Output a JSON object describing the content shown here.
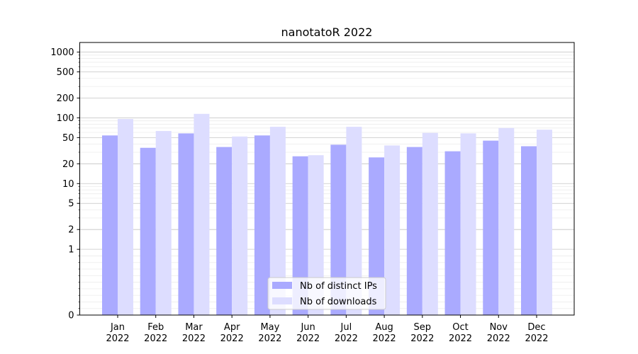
{
  "chart_data": {
    "type": "bar",
    "title": "nanotatoR 2022",
    "xlabel": "",
    "ylabel": "",
    "yscale": "symlog",
    "ylim": [
      0,
      1400
    ],
    "yticks": [
      0,
      1,
      2,
      5,
      10,
      20,
      50,
      100,
      200,
      500,
      1000
    ],
    "grid": true,
    "legend_position": "lower-center",
    "categories": [
      "Jan\n2022",
      "Feb\n2022",
      "Mar\n2022",
      "Apr\n2022",
      "May\n2022",
      "Jun\n2022",
      "Jul\n2022",
      "Aug\n2022",
      "Sep\n2022",
      "Oct\n2022",
      "Nov\n2022",
      "Dec\n2022"
    ],
    "series": [
      {
        "name": "Nb of distinct IPs",
        "color": "#aaaaff",
        "values": [
          54,
          35,
          58,
          36,
          54,
          26,
          39,
          25,
          36,
          31,
          45,
          37
        ]
      },
      {
        "name": "Nb of downloads",
        "color": "#ddddff",
        "values": [
          96,
          63,
          115,
          52,
          73,
          27,
          73,
          38,
          59,
          58,
          70,
          66
        ]
      }
    ]
  }
}
